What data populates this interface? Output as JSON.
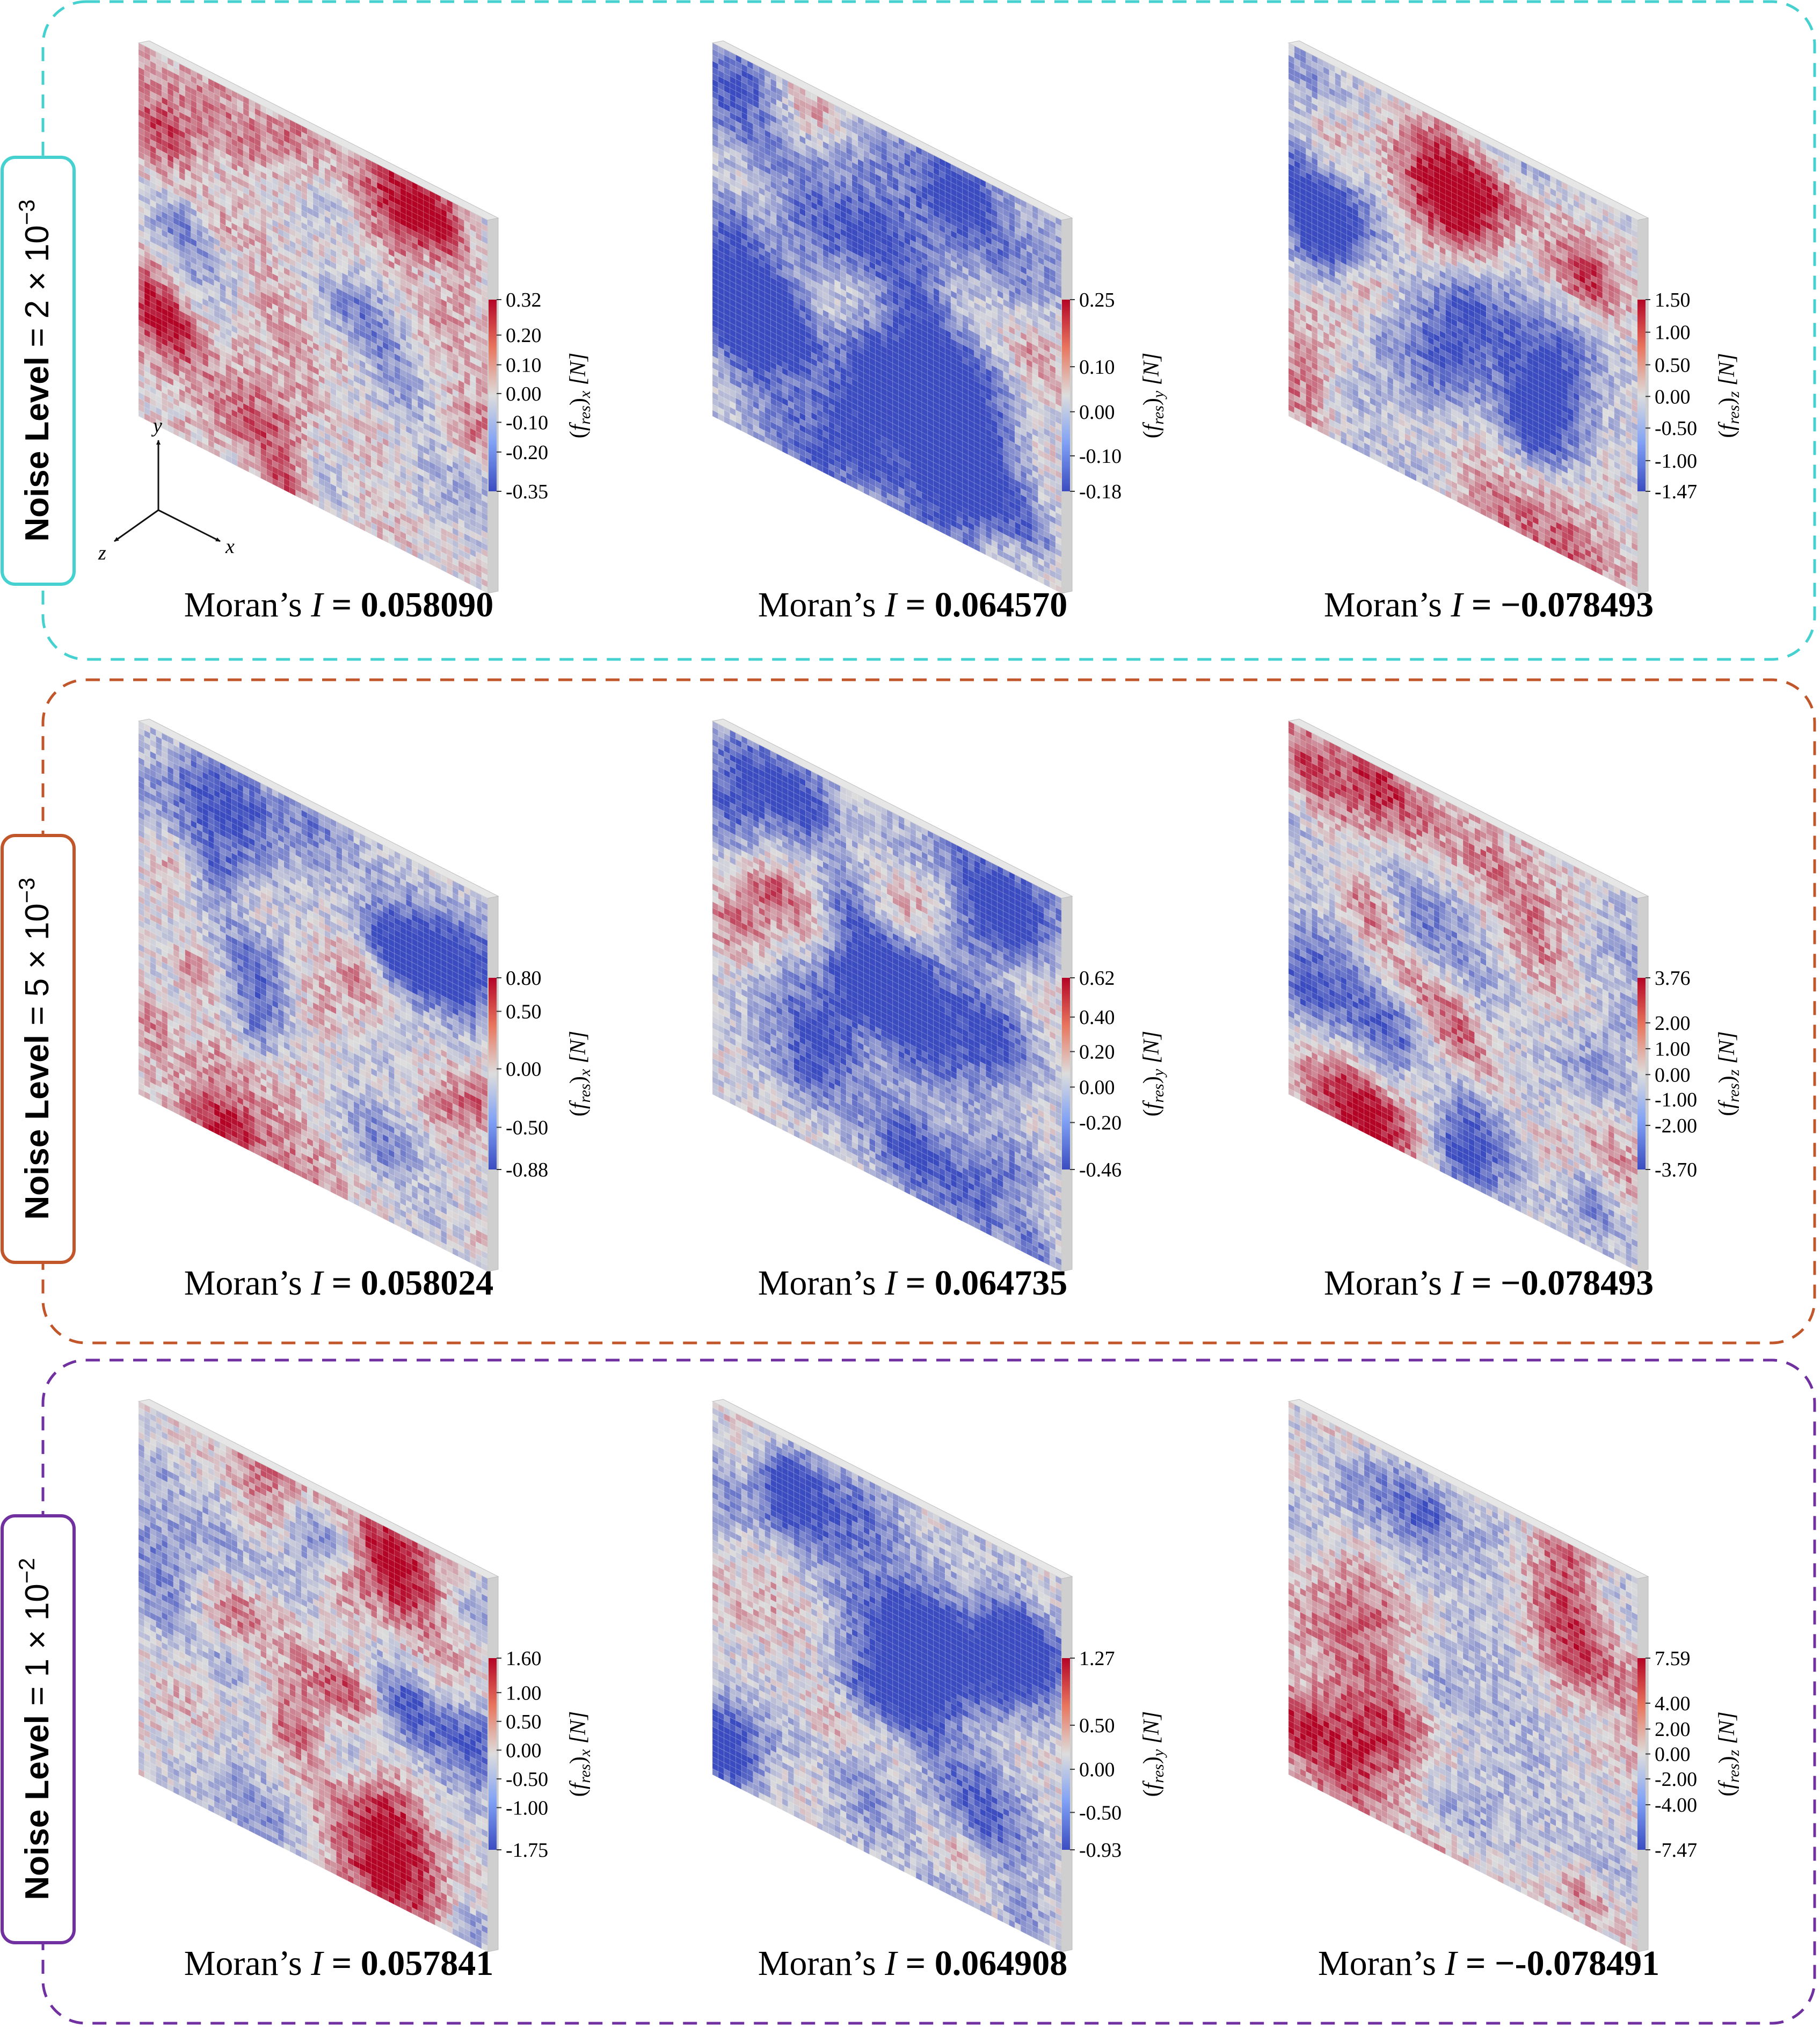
{
  "rows": [
    {
      "border_color": "#45d1cf",
      "label_bold": "Noise Level",
      "label_rest": " = 2 × 10",
      "label_exp": "−3",
      "panels": [
        {
          "cbar_sub": "x",
          "ticks": [
            {
              "label": "0.32",
              "pos": 0
            },
            {
              "label": "0.20",
              "pos": 0.185
            },
            {
              "label": "0.10",
              "pos": 0.34
            },
            {
              "label": "0.00",
              "pos": 0.49
            },
            {
              "label": "-0.10",
              "pos": 0.64
            },
            {
              "label": "-0.20",
              "pos": 0.795
            },
            {
              "label": "-0.35",
              "pos": 1
            }
          ],
          "moran_prefix": "Moran’s ",
          "moran_i": "I",
          "moran_eq": " = ",
          "moran_value": "0.058090",
          "seed": 11,
          "bias": 0.0
        },
        {
          "cbar_sub": "y",
          "ticks": [
            {
              "label": "0.25",
              "pos": 0
            },
            {
              "label": "0.10",
              "pos": 0.35
            },
            {
              "label": "0.00",
              "pos": 0.585
            },
            {
              "label": "-0.10",
              "pos": 0.815
            },
            {
              "label": "-0.18",
              "pos": 1
            }
          ],
          "moran_prefix": "Moran’s ",
          "moran_i": "I",
          "moran_eq": " = ",
          "moran_value": "0.064570",
          "seed": 23,
          "bias": -0.25
        },
        {
          "cbar_sub": "z",
          "ticks": [
            {
              "label": "1.50",
              "pos": 0
            },
            {
              "label": "1.00",
              "pos": 0.17
            },
            {
              "label": "0.50",
              "pos": 0.34
            },
            {
              "label": "0.00",
              "pos": 0.505
            },
            {
              "label": "-0.50",
              "pos": 0.67
            },
            {
              "label": "-1.00",
              "pos": 0.84
            },
            {
              "label": "-1.47",
              "pos": 1
            }
          ],
          "moran_prefix": "Moran’s ",
          "moran_i": "I",
          "moran_eq": " = ",
          "moran_value": "−0.078493",
          "seed": 37,
          "bias": 0.0
        }
      ]
    },
    {
      "border_color": "#c0562a",
      "label_bold": "Noise Level",
      "label_rest": " = 5 × 10",
      "label_exp": "−3",
      "panels": [
        {
          "cbar_sub": "x",
          "ticks": [
            {
              "label": "0.80",
              "pos": 0
            },
            {
              "label": "0.50",
              "pos": 0.175
            },
            {
              "label": "0.00",
              "pos": 0.475
            },
            {
              "label": "-0.50",
              "pos": 0.78
            },
            {
              "label": "-0.88",
              "pos": 1
            }
          ],
          "moran_prefix": "Moran’s ",
          "moran_i": "I",
          "moran_eq": " = ",
          "moran_value": "0.058024",
          "seed": 41,
          "bias": 0.0
        },
        {
          "cbar_sub": "y",
          "ticks": [
            {
              "label": "0.62",
              "pos": 0
            },
            {
              "label": "0.40",
              "pos": 0.205
            },
            {
              "label": "0.20",
              "pos": 0.385
            },
            {
              "label": "0.00",
              "pos": 0.57
            },
            {
              "label": "-0.20",
              "pos": 0.755
            },
            {
              "label": "-0.46",
              "pos": 1
            }
          ],
          "moran_prefix": "Moran’s ",
          "moran_i": "I",
          "moran_eq": " = ",
          "moran_value": "0.064735",
          "seed": 53,
          "bias": -0.25
        },
        {
          "cbar_sub": "z",
          "ticks": [
            {
              "label": "3.76",
              "pos": 0
            },
            {
              "label": "2.00",
              "pos": 0.235
            },
            {
              "label": "1.00",
              "pos": 0.37
            },
            {
              "label": "0.00",
              "pos": 0.505
            },
            {
              "label": "-1.00",
              "pos": 0.635
            },
            {
              "label": "-2.00",
              "pos": 0.77
            },
            {
              "label": "-3.70",
              "pos": 1
            }
          ],
          "moran_prefix": "Moran’s ",
          "moran_i": "I",
          "moran_eq": " = ",
          "moran_value": "−0.078493",
          "seed": 67,
          "bias": 0.0
        }
      ]
    },
    {
      "border_color": "#7030a0",
      "label_bold": "Noise Level",
      "label_rest": " = 1 × 10",
      "label_exp": "−2",
      "panels": [
        {
          "cbar_sub": "x",
          "ticks": [
            {
              "label": "1.60",
              "pos": 0
            },
            {
              "label": "1.00",
              "pos": 0.18
            },
            {
              "label": "0.50",
              "pos": 0.33
            },
            {
              "label": "0.00",
              "pos": 0.48
            },
            {
              "label": "-0.50",
              "pos": 0.63
            },
            {
              "label": "-1.00",
              "pos": 0.78
            },
            {
              "label": "-1.75",
              "pos": 1
            }
          ],
          "moran_prefix": "Moran’s ",
          "moran_i": "I",
          "moran_eq": " = ",
          "moran_value": "0.057841",
          "seed": 71,
          "bias": 0.0
        },
        {
          "cbar_sub": "y",
          "ticks": [
            {
              "label": "1.27",
              "pos": 0
            },
            {
              "label": "0.50",
              "pos": 0.35
            },
            {
              "label": "0.00",
              "pos": 0.58
            },
            {
              "label": "-0.50",
              "pos": 0.805
            },
            {
              "label": "-0.93",
              "pos": 1
            }
          ],
          "moran_prefix": "Moran’s ",
          "moran_i": "I",
          "moran_eq": " = ",
          "moran_value": "0.064908",
          "seed": 83,
          "bias": -0.25
        },
        {
          "cbar_sub": "z",
          "ticks": [
            {
              "label": "7.59",
              "pos": 0
            },
            {
              "label": "4.00",
              "pos": 0.235
            },
            {
              "label": "2.00",
              "pos": 0.37
            },
            {
              "label": "0.00",
              "pos": 0.5
            },
            {
              "label": "-2.00",
              "pos": 0.63
            },
            {
              "label": "-4.00",
              "pos": 0.765
            },
            {
              "label": "-7.47",
              "pos": 1
            }
          ],
          "moran_prefix": "Moran’s ",
          "moran_i": "I",
          "moran_eq": " = ",
          "moran_value": "−-0.078491",
          "seed": 97,
          "bias": 0.0
        }
      ]
    }
  ],
  "cbar_label": {
    "main": "f",
    "sub_main": "res",
    "unit": "[N]"
  },
  "axes": {
    "y": "y",
    "x": "x",
    "z": "z"
  },
  "colors": {
    "cold": "#3b4cc0",
    "neutral": "#dddddd",
    "warm": "#b40426",
    "panel_edge": "#bdbdbd"
  }
}
